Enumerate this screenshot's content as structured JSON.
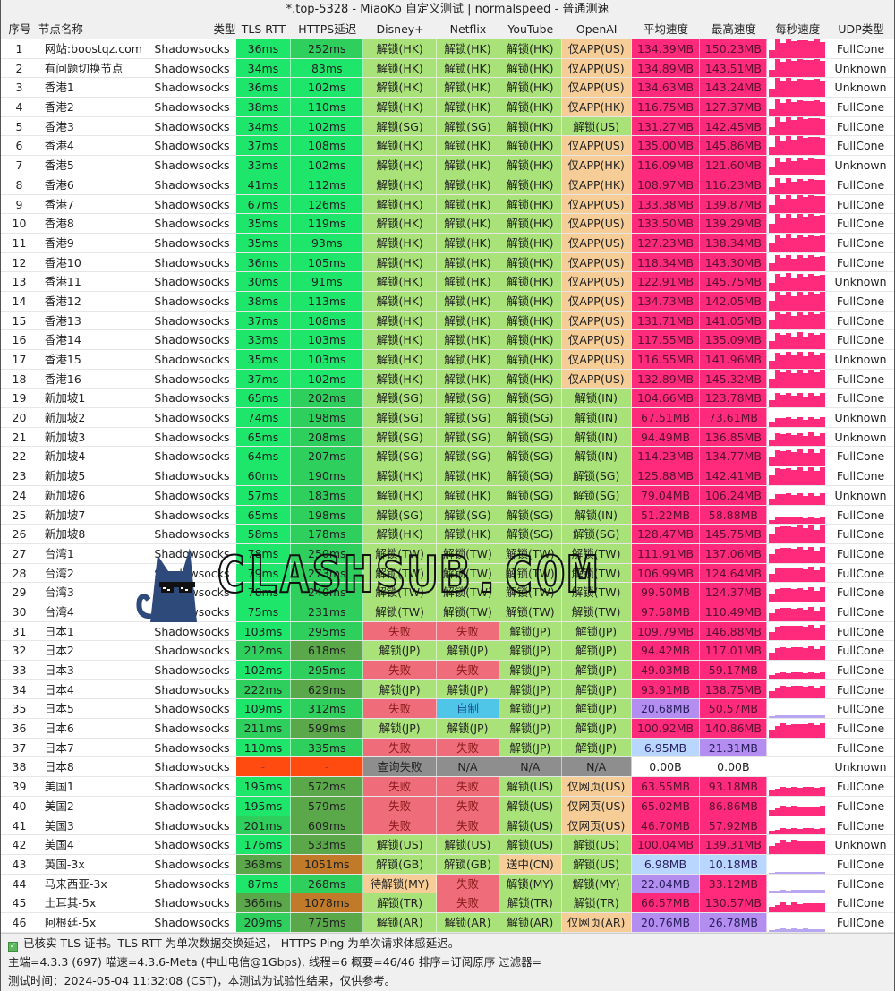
{
  "window": {
    "title": "*.top-5328 - MiaoKo 自定义测试 | normalspeed - 普通测速"
  },
  "columns": [
    "序号",
    "节点名称",
    "类型",
    "TLS RTT",
    "HTTPS延迟",
    "Disney+",
    "Netflix",
    "YouTube",
    "OpenAI",
    "平均速度",
    "最高速度",
    "每秒速度",
    "UDP类型"
  ],
  "colors": {
    "latency_good": "#1de66b",
    "latency_mid": "#2fcf5e",
    "latency_slow": "#5aa84a",
    "latency_bad": "#c07a2a",
    "latency_fail": "#ff4a10",
    "unlock": "#a9e279",
    "app_only": "#f6cd96",
    "fail": "#ef6d7a",
    "na": "#8e8e8e",
    "self_made": "#4fc6e8",
    "speed_high": "#ff2a7c",
    "speed_mid": "#b38ef0",
    "speed_low": "#b9d6ff"
  },
  "rows": [
    {
      "idx": "1",
      "name": "网站:boostqz.com",
      "type": "Shadowsocks",
      "tls": "36ms",
      "https": "252ms",
      "disney": "解锁(HK)",
      "netflix": "解锁(HK)",
      "youtube": "解锁(HK)",
      "openai": "仅APP(US)",
      "avg": "134.39MB",
      "max": "150.23MB",
      "udp": "FullCone"
    },
    {
      "idx": "2",
      "name": "有问题切换节点",
      "type": "Shadowsocks",
      "tls": "34ms",
      "https": "83ms",
      "disney": "解锁(HK)",
      "netflix": "解锁(HK)",
      "youtube": "解锁(HK)",
      "openai": "仅APP(US)",
      "avg": "134.89MB",
      "max": "143.51MB",
      "udp": "Unknown"
    },
    {
      "idx": "3",
      "name": "香港1",
      "type": "Shadowsocks",
      "tls": "36ms",
      "https": "102ms",
      "disney": "解锁(HK)",
      "netflix": "解锁(HK)",
      "youtube": "解锁(HK)",
      "openai": "仅APP(US)",
      "avg": "134.63MB",
      "max": "143.24MB",
      "udp": "Unknown"
    },
    {
      "idx": "4",
      "name": "香港2",
      "type": "Shadowsocks",
      "tls": "38ms",
      "https": "110ms",
      "disney": "解锁(HK)",
      "netflix": "解锁(HK)",
      "youtube": "解锁(HK)",
      "openai": "仅APP(HK)",
      "avg": "116.75MB",
      "max": "127.37MB",
      "udp": "FullCone"
    },
    {
      "idx": "5",
      "name": "香港3",
      "type": "Shadowsocks",
      "tls": "34ms",
      "https": "102ms",
      "disney": "解锁(SG)",
      "netflix": "解锁(SG)",
      "youtube": "解锁(HK)",
      "openai": "解锁(US)",
      "avg": "131.27MB",
      "max": "142.45MB",
      "udp": "FullCone"
    },
    {
      "idx": "6",
      "name": "香港4",
      "type": "Shadowsocks",
      "tls": "37ms",
      "https": "108ms",
      "disney": "解锁(HK)",
      "netflix": "解锁(HK)",
      "youtube": "解锁(HK)",
      "openai": "仅APP(US)",
      "avg": "135.00MB",
      "max": "145.86MB",
      "udp": "FullCone"
    },
    {
      "idx": "7",
      "name": "香港5",
      "type": "Shadowsocks",
      "tls": "33ms",
      "https": "102ms",
      "disney": "解锁(HK)",
      "netflix": "解锁(HK)",
      "youtube": "解锁(HK)",
      "openai": "仅APP(HK)",
      "avg": "116.09MB",
      "max": "121.60MB",
      "udp": "Unknown"
    },
    {
      "idx": "8",
      "name": "香港6",
      "type": "Shadowsocks",
      "tls": "41ms",
      "https": "112ms",
      "disney": "解锁(HK)",
      "netflix": "解锁(HK)",
      "youtube": "解锁(HK)",
      "openai": "仅APP(HK)",
      "avg": "108.97MB",
      "max": "116.23MB",
      "udp": "FullCone"
    },
    {
      "idx": "9",
      "name": "香港7",
      "type": "Shadowsocks",
      "tls": "67ms",
      "https": "126ms",
      "disney": "解锁(HK)",
      "netflix": "解锁(HK)",
      "youtube": "解锁(HK)",
      "openai": "仅APP(US)",
      "avg": "133.38MB",
      "max": "139.87MB",
      "udp": "FullCone"
    },
    {
      "idx": "10",
      "name": "香港8",
      "type": "Shadowsocks",
      "tls": "35ms",
      "https": "119ms",
      "disney": "解锁(HK)",
      "netflix": "解锁(HK)",
      "youtube": "解锁(HK)",
      "openai": "仅APP(US)",
      "avg": "133.50MB",
      "max": "139.29MB",
      "udp": "FullCone"
    },
    {
      "idx": "11",
      "name": "香港9",
      "type": "Shadowsocks",
      "tls": "35ms",
      "https": "93ms",
      "disney": "解锁(HK)",
      "netflix": "解锁(HK)",
      "youtube": "解锁(HK)",
      "openai": "仅APP(US)",
      "avg": "127.23MB",
      "max": "138.34MB",
      "udp": "FullCone"
    },
    {
      "idx": "12",
      "name": "香港10",
      "type": "Shadowsocks",
      "tls": "36ms",
      "https": "105ms",
      "disney": "解锁(HK)",
      "netflix": "解锁(HK)",
      "youtube": "解锁(HK)",
      "openai": "仅APP(US)",
      "avg": "118.34MB",
      "max": "143.30MB",
      "udp": "FullCone"
    },
    {
      "idx": "13",
      "name": "香港11",
      "type": "Shadowsocks",
      "tls": "30ms",
      "https": "91ms",
      "disney": "解锁(HK)",
      "netflix": "解锁(HK)",
      "youtube": "解锁(HK)",
      "openai": "仅APP(US)",
      "avg": "122.91MB",
      "max": "145.75MB",
      "udp": "Unknown"
    },
    {
      "idx": "14",
      "name": "香港12",
      "type": "Shadowsocks",
      "tls": "38ms",
      "https": "113ms",
      "disney": "解锁(HK)",
      "netflix": "解锁(HK)",
      "youtube": "解锁(HK)",
      "openai": "仅APP(US)",
      "avg": "134.73MB",
      "max": "142.05MB",
      "udp": "FullCone"
    },
    {
      "idx": "15",
      "name": "香港13",
      "type": "Shadowsocks",
      "tls": "37ms",
      "https": "108ms",
      "disney": "解锁(HK)",
      "netflix": "解锁(HK)",
      "youtube": "解锁(HK)",
      "openai": "仅APP(US)",
      "avg": "131.71MB",
      "max": "141.05MB",
      "udp": "FullCone"
    },
    {
      "idx": "16",
      "name": "香港14",
      "type": "Shadowsocks",
      "tls": "33ms",
      "https": "103ms",
      "disney": "解锁(HK)",
      "netflix": "解锁(HK)",
      "youtube": "解锁(HK)",
      "openai": "仅APP(US)",
      "avg": "117.55MB",
      "max": "135.09MB",
      "udp": "FullCone"
    },
    {
      "idx": "17",
      "name": "香港15",
      "type": "Shadowsocks",
      "tls": "35ms",
      "https": "103ms",
      "disney": "解锁(HK)",
      "netflix": "解锁(HK)",
      "youtube": "解锁(HK)",
      "openai": "仅APP(US)",
      "avg": "116.55MB",
      "max": "141.96MB",
      "udp": "Unknown"
    },
    {
      "idx": "18",
      "name": "香港16",
      "type": "Shadowsocks",
      "tls": "37ms",
      "https": "102ms",
      "disney": "解锁(HK)",
      "netflix": "解锁(HK)",
      "youtube": "解锁(HK)",
      "openai": "仅APP(US)",
      "avg": "132.89MB",
      "max": "145.32MB",
      "udp": "FullCone"
    },
    {
      "idx": "19",
      "name": "新加坡1",
      "type": "Shadowsocks",
      "tls": "65ms",
      "https": "202ms",
      "disney": "解锁(SG)",
      "netflix": "解锁(SG)",
      "youtube": "解锁(SG)",
      "openai": "解锁(IN)",
      "avg": "104.66MB",
      "max": "123.78MB",
      "udp": "FullCone"
    },
    {
      "idx": "20",
      "name": "新加坡2",
      "type": "Shadowsocks",
      "tls": "74ms",
      "https": "198ms",
      "disney": "解锁(SG)",
      "netflix": "解锁(SG)",
      "youtube": "解锁(SG)",
      "openai": "解锁(IN)",
      "avg": "67.51MB",
      "max": "73.61MB",
      "udp": "Unknown"
    },
    {
      "idx": "21",
      "name": "新加坡3",
      "type": "Shadowsocks",
      "tls": "65ms",
      "https": "208ms",
      "disney": "解锁(SG)",
      "netflix": "解锁(SG)",
      "youtube": "解锁(SG)",
      "openai": "解锁(IN)",
      "avg": "94.49MB",
      "max": "136.85MB",
      "udp": "Unknown"
    },
    {
      "idx": "22",
      "name": "新加坡4",
      "type": "Shadowsocks",
      "tls": "64ms",
      "https": "207ms",
      "disney": "解锁(SG)",
      "netflix": "解锁(SG)",
      "youtube": "解锁(SG)",
      "openai": "解锁(IN)",
      "avg": "114.23MB",
      "max": "134.77MB",
      "udp": "FullCone"
    },
    {
      "idx": "23",
      "name": "新加坡5",
      "type": "Shadowsocks",
      "tls": "60ms",
      "https": "190ms",
      "disney": "解锁(HK)",
      "netflix": "解锁(HK)",
      "youtube": "解锁(SG)",
      "openai": "解锁(SG)",
      "avg": "125.88MB",
      "max": "142.41MB",
      "udp": "FullCone"
    },
    {
      "idx": "24",
      "name": "新加坡6",
      "type": "Shadowsocks",
      "tls": "57ms",
      "https": "183ms",
      "disney": "解锁(HK)",
      "netflix": "解锁(HK)",
      "youtube": "解锁(SG)",
      "openai": "解锁(SG)",
      "avg": "79.04MB",
      "max": "106.24MB",
      "udp": "Unknown"
    },
    {
      "idx": "25",
      "name": "新加坡7",
      "type": "Shadowsocks",
      "tls": "65ms",
      "https": "198ms",
      "disney": "解锁(SG)",
      "netflix": "解锁(SG)",
      "youtube": "解锁(SG)",
      "openai": "解锁(IN)",
      "avg": "51.22MB",
      "max": "58.88MB",
      "udp": "FullCone"
    },
    {
      "idx": "26",
      "name": "新加坡8",
      "type": "Shadowsocks",
      "tls": "58ms",
      "https": "178ms",
      "disney": "解锁(HK)",
      "netflix": "解锁(HK)",
      "youtube": "解锁(SG)",
      "openai": "解锁(SG)",
      "avg": "128.47MB",
      "max": "145.75MB",
      "udp": "FullCone"
    },
    {
      "idx": "27",
      "name": "台湾1",
      "type": "Shadowsocks",
      "tls": "78ms",
      "https": "250ms",
      "disney": "解锁(TW)",
      "netflix": "解锁(TW)",
      "youtube": "解锁(TW)",
      "openai": "解锁(TW)",
      "avg": "111.91MB",
      "max": "137.06MB",
      "udp": "FullCone"
    },
    {
      "idx": "28",
      "name": "台湾2",
      "type": "Shadowsocks",
      "tls": "79ms",
      "https": "273ms",
      "disney": "解锁(TW)",
      "netflix": "解锁(TW)",
      "youtube": "解锁(TW)",
      "openai": "解锁(TW)",
      "avg": "106.99MB",
      "max": "124.64MB",
      "udp": "FullCone"
    },
    {
      "idx": "29",
      "name": "台湾3",
      "type": "Shadowsocks",
      "tls": "78ms",
      "https": "240ms",
      "disney": "解锁(TW)",
      "netflix": "解锁(TW)",
      "youtube": "解锁(TW)",
      "openai": "解锁(TW)",
      "avg": "99.50MB",
      "max": "124.37MB",
      "udp": "FullCone"
    },
    {
      "idx": "30",
      "name": "台湾4",
      "type": "Shadowsocks",
      "tls": "75ms",
      "https": "231ms",
      "disney": "解锁(TW)",
      "netflix": "解锁(TW)",
      "youtube": "解锁(TW)",
      "openai": "解锁(TW)",
      "avg": "97.58MB",
      "max": "110.49MB",
      "udp": "FullCone"
    },
    {
      "idx": "31",
      "name": "日本1",
      "type": "Shadowsocks",
      "tls": "103ms",
      "https": "295ms",
      "disney": "失败",
      "netflix": "失败",
      "youtube": "解锁(JP)",
      "openai": "解锁(JP)",
      "avg": "109.79MB",
      "max": "146.88MB",
      "udp": "FullCone"
    },
    {
      "idx": "32",
      "name": "日本2",
      "type": "Shadowsocks",
      "tls": "212ms",
      "https": "618ms",
      "disney": "解锁(JP)",
      "netflix": "解锁(JP)",
      "youtube": "解锁(JP)",
      "openai": "解锁(JP)",
      "avg": "94.42MB",
      "max": "117.01MB",
      "udp": "FullCone"
    },
    {
      "idx": "33",
      "name": "日本3",
      "type": "Shadowsocks",
      "tls": "102ms",
      "https": "295ms",
      "disney": "失败",
      "netflix": "失败",
      "youtube": "解锁(JP)",
      "openai": "解锁(JP)",
      "avg": "49.03MB",
      "max": "59.17MB",
      "udp": "FullCone"
    },
    {
      "idx": "34",
      "name": "日本4",
      "type": "Shadowsocks",
      "tls": "222ms",
      "https": "629ms",
      "disney": "解锁(JP)",
      "netflix": "解锁(JP)",
      "youtube": "解锁(JP)",
      "openai": "解锁(JP)",
      "avg": "93.91MB",
      "max": "138.75MB",
      "udp": "FullCone"
    },
    {
      "idx": "35",
      "name": "日本5",
      "type": "Shadowsocks",
      "tls": "109ms",
      "https": "312ms",
      "disney": "失败",
      "netflix": "自制",
      "youtube": "解锁(JP)",
      "openai": "解锁(JP)",
      "avg": "20.68MB",
      "max": "50.57MB",
      "udp": "FullCone"
    },
    {
      "idx": "36",
      "name": "日本6",
      "type": "Shadowsocks",
      "tls": "211ms",
      "https": "599ms",
      "disney": "解锁(JP)",
      "netflix": "解锁(JP)",
      "youtube": "解锁(JP)",
      "openai": "解锁(JP)",
      "avg": "100.92MB",
      "max": "140.86MB",
      "udp": "FullCone"
    },
    {
      "idx": "37",
      "name": "日本7",
      "type": "Shadowsocks",
      "tls": "110ms",
      "https": "335ms",
      "disney": "失败",
      "netflix": "失败",
      "youtube": "解锁(JP)",
      "openai": "解锁(JP)",
      "avg": "6.95MB",
      "max": "21.31MB",
      "udp": "FullCone"
    },
    {
      "idx": "38",
      "name": "日本8",
      "type": "Shadowsocks",
      "tls": "-",
      "https": "-",
      "disney": "查询失败",
      "netflix": "N/A",
      "youtube": "N/A",
      "openai": "N/A",
      "avg": "0.00B",
      "max": "0.00B",
      "udp": "Unknown"
    },
    {
      "idx": "39",
      "name": "美国1",
      "type": "Shadowsocks",
      "tls": "195ms",
      "https": "572ms",
      "disney": "失败",
      "netflix": "失败",
      "youtube": "解锁(US)",
      "openai": "仅网页(US)",
      "avg": "63.55MB",
      "max": "93.18MB",
      "udp": "FullCone"
    },
    {
      "idx": "40",
      "name": "美国2",
      "type": "Shadowsocks",
      "tls": "195ms",
      "https": "579ms",
      "disney": "失败",
      "netflix": "失败",
      "youtube": "解锁(US)",
      "openai": "仅网页(US)",
      "avg": "65.02MB",
      "max": "86.86MB",
      "udp": "FullCone"
    },
    {
      "idx": "41",
      "name": "美国3",
      "type": "Shadowsocks",
      "tls": "201ms",
      "https": "609ms",
      "disney": "失败",
      "netflix": "失败",
      "youtube": "解锁(US)",
      "openai": "仅网页(US)",
      "avg": "46.70MB",
      "max": "57.92MB",
      "udp": "FullCone"
    },
    {
      "idx": "42",
      "name": "美国4",
      "type": "Shadowsocks",
      "tls": "176ms",
      "https": "533ms",
      "disney": "解锁(US)",
      "netflix": "解锁(US)",
      "youtube": "解锁(US)",
      "openai": "解锁(US)",
      "avg": "100.04MB",
      "max": "139.31MB",
      "udp": "Unknown"
    },
    {
      "idx": "43",
      "name": "英国-3x",
      "type": "Shadowsocks",
      "tls": "368ms",
      "https": "1051ms",
      "disney": "解锁(GB)",
      "netflix": "解锁(GB)",
      "youtube": "送中(CN)",
      "openai": "解锁(US)",
      "avg": "6.98MB",
      "max": "10.18MB",
      "udp": "FullCone"
    },
    {
      "idx": "44",
      "name": "马来西亚-3x",
      "type": "Shadowsocks",
      "tls": "87ms",
      "https": "268ms",
      "disney": "待解锁(MY)",
      "netflix": "失败",
      "youtube": "解锁(MY)",
      "openai": "解锁(MY)",
      "avg": "22.04MB",
      "max": "33.12MB",
      "udp": "FullCone"
    },
    {
      "idx": "45",
      "name": "土耳其-5x",
      "type": "Shadowsocks",
      "tls": "366ms",
      "https": "1078ms",
      "disney": "解锁(TR)",
      "netflix": "失败",
      "youtube": "解锁(TR)",
      "openai": "解锁(TR)",
      "avg": "66.57MB",
      "max": "130.57MB",
      "udp": "FullCone"
    },
    {
      "idx": "46",
      "name": "阿根廷-5x",
      "type": "Shadowsocks",
      "tls": "209ms",
      "https": "775ms",
      "disney": "解锁(AR)",
      "netflix": "解锁(AR)",
      "youtube": "解锁(AR)",
      "openai": "仅网页(AR)",
      "avg": "20.76MB",
      "max": "26.78MB",
      "udp": "FullCone"
    }
  ],
  "footer": {
    "checkbox_icon": "checkbox-checked-icon",
    "line1": "已核实 TLS 证书。TLS RTT 为单次数据交换延迟， HTTPS Ping 为单次请求体感延迟。",
    "line2": "主端=4.3.3 (697) 喵速=4.3.6-Meta (中山电信@1Gbps), 线程=6 概要=46/46 排序=订阅原序 过滤器=",
    "line3": "测试时间：2024-05-04 11:32:08 (CST)，本测试为试验性结果，仅供参考。"
  },
  "watermark": {
    "text": "CLASHSUB.COM",
    "icon": "cat-with-sunglasses-icon"
  }
}
